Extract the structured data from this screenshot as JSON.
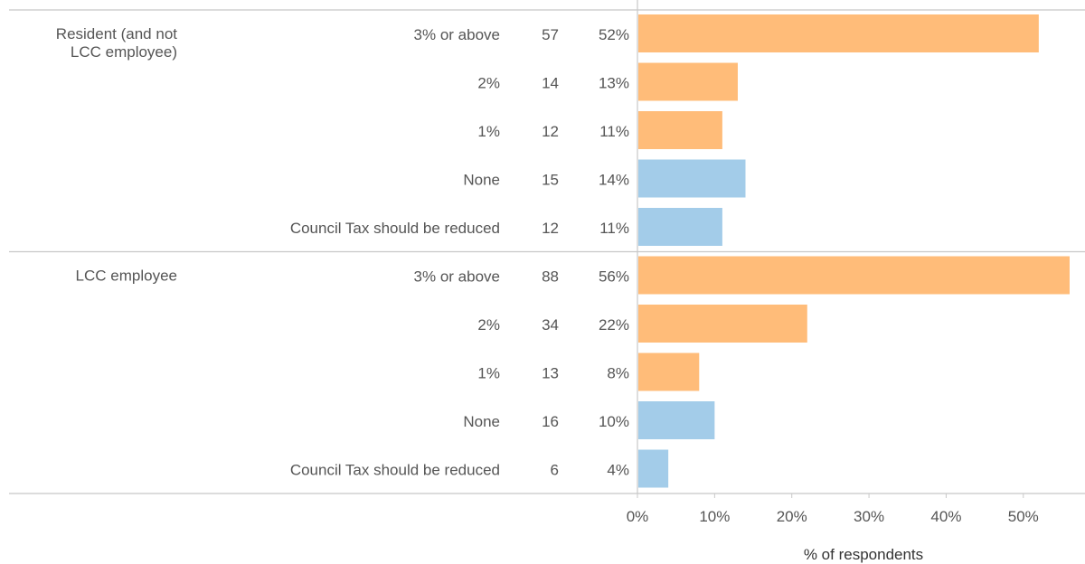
{
  "chart_data": {
    "type": "bar",
    "orientation": "horizontal",
    "xlabel": "% of respondents",
    "xlim": [
      0,
      56
    ],
    "x_ticks": [
      0,
      10,
      20,
      30,
      40,
      50
    ],
    "x_tick_suffix": "%",
    "grid": false,
    "colors": {
      "increase": "#FFBC79",
      "no_increase": "#A3CCE9"
    },
    "groups": [
      {
        "label": "Resident (and not LCC employee)",
        "label_lines": [
          "Resident (and not",
          "LCC employee)"
        ],
        "rows": [
          {
            "category": "3% or above",
            "count": 57,
            "percent": 52,
            "color_key": "increase"
          },
          {
            "category": "2%",
            "count": 14,
            "percent": 13,
            "color_key": "increase"
          },
          {
            "category": "1%",
            "count": 12,
            "percent": 11,
            "color_key": "increase"
          },
          {
            "category": "None",
            "count": 15,
            "percent": 14,
            "color_key": "no_increase"
          },
          {
            "category": "Council Tax should be reduced",
            "count": 12,
            "percent": 11,
            "color_key": "no_increase"
          }
        ]
      },
      {
        "label": "LCC employee",
        "label_lines": [
          "LCC employee"
        ],
        "rows": [
          {
            "category": "3% or above",
            "count": 88,
            "percent": 56,
            "color_key": "increase"
          },
          {
            "category": "2%",
            "count": 34,
            "percent": 22,
            "color_key": "increase"
          },
          {
            "category": "1%",
            "count": 13,
            "percent": 8,
            "color_key": "increase"
          },
          {
            "category": "None",
            "count": 16,
            "percent": 10,
            "color_key": "no_increase"
          },
          {
            "category": "Council Tax should be reduced",
            "count": 6,
            "percent": 4,
            "color_key": "no_increase"
          }
        ]
      }
    ]
  }
}
